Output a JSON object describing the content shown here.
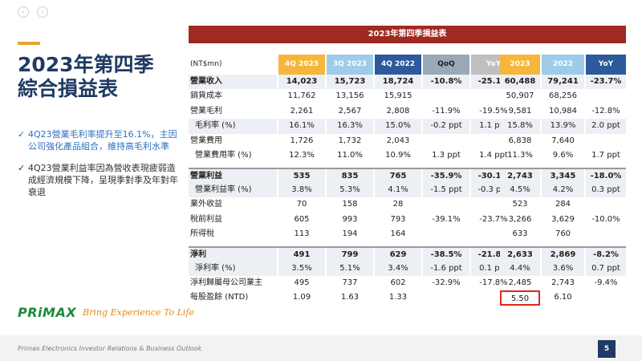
{
  "nav": {
    "prev_icon": "‹",
    "next_icon": "›"
  },
  "slide": {
    "title_line1": "2023年第四季",
    "title_line2": "綜合損益表",
    "bullets": [
      "4Q23營業毛利率提升至16.1%，主因公司強化產品組合，維持高毛利水準",
      "4Q23營業利益率因為營收表現疲弱造成經濟規模下降，呈現季對季及年對年衰退"
    ],
    "logo": "PRiMAX",
    "tagline": "Bring Experience To Life",
    "footer": "Primax Electronics Investor Relations & Business Outlook",
    "page": "5"
  },
  "table": {
    "title": "2023年第四季損益表",
    "unit_label": "(NT$mn)",
    "columns": [
      "4Q 2023",
      "3Q 2023",
      "4Q 2022",
      "QoQ",
      "YoY",
      "2023",
      "2022",
      "YoY"
    ],
    "rows": [
      {
        "label": "營業收入",
        "values": [
          "14,023",
          "15,723",
          "18,724",
          "-10.8%",
          "-25.1%",
          "60,488",
          "79,241",
          "-23.7%"
        ]
      },
      {
        "label": "銷貨成本",
        "values": [
          "11,762",
          "13,156",
          "15,915",
          "",
          "",
          "50,907",
          "68,256",
          ""
        ]
      },
      {
        "label": "營業毛利",
        "values": [
          "2,261",
          "2,567",
          "2,808",
          "-11.9%",
          "-19.5%",
          "9,581",
          "10,984",
          "-12.8%"
        ]
      },
      {
        "label": "毛利率 (%)",
        "values": [
          "16.1%",
          "16.3%",
          "15.0%",
          "-0.2 ppt",
          "1.1 ppt",
          "15.8%",
          "13.9%",
          "2.0 ppt"
        ]
      },
      {
        "label": "營業費用",
        "values": [
          "1,726",
          "1,732",
          "2,043",
          "",
          "",
          "6,838",
          "7,640",
          ""
        ]
      },
      {
        "label": "營業費用率 (%)",
        "values": [
          "12.3%",
          "11.0%",
          "10.9%",
          "1.3 ppt",
          "1.4 ppt",
          "11.3%",
          "9.6%",
          "1.7 ppt"
        ]
      },
      {
        "label": "營業利益",
        "values": [
          "535",
          "835",
          "765",
          "-35.9%",
          "-30.1%",
          "2,743",
          "3,345",
          "-18.0%"
        ]
      },
      {
        "label": "營業利益率 (%)",
        "values": [
          "3.8%",
          "5.3%",
          "4.1%",
          "-1.5 ppt",
          "-0.3 ppt",
          "4.5%",
          "4.2%",
          "0.3 ppt"
        ]
      },
      {
        "label": "業外收益",
        "values": [
          "70",
          "158",
          "28",
          "",
          "",
          "523",
          "284",
          ""
        ]
      },
      {
        "label": "稅前利益",
        "values": [
          "605",
          "993",
          "793",
          "-39.1%",
          "-23.7%",
          "3,266",
          "3,629",
          "-10.0%"
        ]
      },
      {
        "label": "所得稅",
        "values": [
          "113",
          "194",
          "164",
          "",
          "",
          "633",
          "760",
          ""
        ]
      },
      {
        "label": "淨利",
        "values": [
          "491",
          "799",
          "629",
          "-38.5%",
          "-21.8%",
          "2,633",
          "2,869",
          "-8.2%"
        ]
      },
      {
        "label": "淨利率 (%)",
        "values": [
          "3.5%",
          "5.1%",
          "3.4%",
          "-1.6 ppt",
          "0.1 ppt",
          "4.4%",
          "3.6%",
          "0.7 ppt"
        ]
      },
      {
        "label": "淨利歸屬母公司業主",
        "values": [
          "495",
          "737",
          "602",
          "-32.9%",
          "-17.8%",
          "2,485",
          "2,743",
          "-9.4%"
        ]
      },
      {
        "label": "每股盈餘 (NTD)",
        "values": [
          "1.09",
          "1.63",
          "1.33",
          "",
          "",
          "5.50",
          "6.10",
          ""
        ]
      }
    ]
  }
}
